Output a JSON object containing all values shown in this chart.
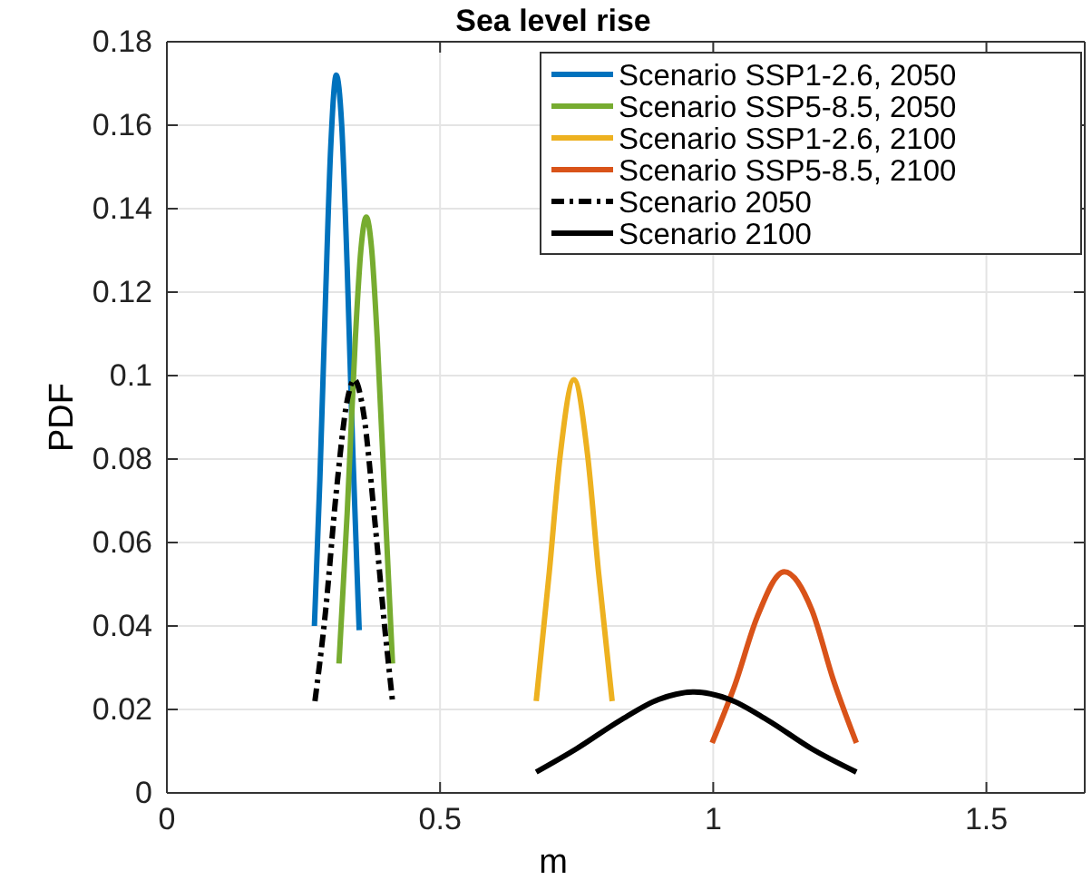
{
  "chart_data": {
    "type": "line",
    "title": "Sea level rise",
    "xlabel": "m",
    "ylabel": "PDF",
    "xlim": [
      0,
      1.68
    ],
    "ylim": [
      0,
      0.18
    ],
    "xticks": [
      0,
      0.5,
      1,
      1.5
    ],
    "yticks": [
      0,
      0.02,
      0.04,
      0.06,
      0.08,
      0.1,
      0.12,
      0.14,
      0.16,
      0.18
    ],
    "grid": true,
    "legend": "top right",
    "marker": "none",
    "series": [
      {
        "name": "Scenario SSP1-2.6, 2050",
        "color": "#0072bd",
        "line_style": "solid",
        "x": [
          0.27,
          0.28,
          0.29,
          0.3,
          0.31,
          0.32,
          0.33,
          0.34,
          0.35,
          0.352
        ],
        "values": [
          0.04,
          0.075,
          0.117,
          0.155,
          0.172,
          0.16,
          0.126,
          0.083,
          0.046,
          0.039
        ]
      },
      {
        "name": "Scenario SSP5-8.5, 2050",
        "color": "#77ac30",
        "line_style": "solid",
        "x": [
          0.315,
          0.33,
          0.345,
          0.355,
          0.365,
          0.375,
          0.385,
          0.4,
          0.413
        ],
        "values": [
          0.031,
          0.067,
          0.109,
          0.13,
          0.138,
          0.13,
          0.109,
          0.067,
          0.031
        ]
      },
      {
        "name": "Scenario SSP1-2.6, 2100",
        "color": "#edb120",
        "line_style": "solid",
        "x": [
          0.676,
          0.7,
          0.72,
          0.745,
          0.77,
          0.79,
          0.815
        ],
        "values": [
          0.022,
          0.053,
          0.081,
          0.099,
          0.081,
          0.053,
          0.022
        ]
      },
      {
        "name": "Scenario SSP5-8.5, 2100",
        "color": "#d95319",
        "line_style": "solid",
        "x": [
          0.998,
          1.04,
          1.08,
          1.13,
          1.18,
          1.22,
          1.262
        ],
        "values": [
          0.012,
          0.026,
          0.042,
          0.053,
          0.044,
          0.027,
          0.012
        ]
      },
      {
        "name": "Scenario 2050",
        "color": "#000000",
        "line_style": "dashed",
        "x": [
          0.271,
          0.29,
          0.31,
          0.33,
          0.343,
          0.36,
          0.38,
          0.4,
          0.413
        ],
        "values": [
          0.022,
          0.043,
          0.072,
          0.094,
          0.099,
          0.091,
          0.066,
          0.038,
          0.022
        ]
      },
      {
        "name": "Scenario 2100",
        "color": "#000000",
        "line_style": "solid",
        "x": [
          0.676,
          0.75,
          0.83,
          0.9,
          0.965,
          1.03,
          1.1,
          1.18,
          1.262
        ],
        "values": [
          0.005,
          0.0106,
          0.0174,
          0.0224,
          0.0242,
          0.0224,
          0.0174,
          0.0106,
          0.005
        ]
      }
    ]
  }
}
